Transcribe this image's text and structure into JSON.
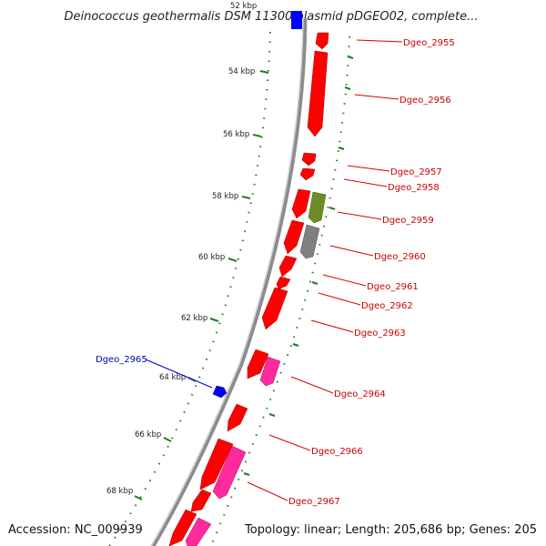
{
  "title": "Deinococcus geothermalis DSM 11300 plasmid pDGEO02, complete...",
  "footer": {
    "accession": "Accession: NC_009939",
    "summary": "Topology: linear; Length: 205,686 bp; Genes: 205"
  },
  "colors": {
    "backbone": "#8c8c8c",
    "tick": "#1e7d1e",
    "gene_forward": "#ff0000",
    "gene_pink": "#ff2a9d",
    "gene_olive": "#6b8e23",
    "gene_gray": "#808080",
    "gene_blue": "#0000ff",
    "label_red": "#cc0000",
    "label_blue": "#0000aa"
  },
  "ticks": [
    {
      "label": "52 kbp"
    },
    {
      "label": "54 kbp"
    },
    {
      "label": "56 kbp"
    },
    {
      "label": "58 kbp"
    },
    {
      "label": "60 kbp"
    },
    {
      "label": "62 kbp"
    },
    {
      "label": "64 kbp"
    },
    {
      "label": "66 kbp"
    },
    {
      "label": "68 kbp"
    }
  ],
  "genes": [
    {
      "label": "Dgeo_2955",
      "color": "red"
    },
    {
      "label": "Dgeo_2956",
      "color": "red"
    },
    {
      "label": "Dgeo_2957",
      "color": "red"
    },
    {
      "label": "Dgeo_2958",
      "color": "red"
    },
    {
      "label": "Dgeo_2959",
      "color": "olive"
    },
    {
      "label": "Dgeo_2960",
      "color": "gray"
    },
    {
      "label": "Dgeo_2961",
      "color": "red"
    },
    {
      "label": "Dgeo_2962",
      "color": "red"
    },
    {
      "label": "Dgeo_2963",
      "color": "red"
    },
    {
      "label": "Dgeo_2964",
      "color": "pink"
    },
    {
      "label": "Dgeo_2965",
      "color": "blue"
    },
    {
      "label": "Dgeo_2966",
      "color": "red"
    },
    {
      "label": "Dgeo_2967",
      "color": "pink"
    }
  ]
}
